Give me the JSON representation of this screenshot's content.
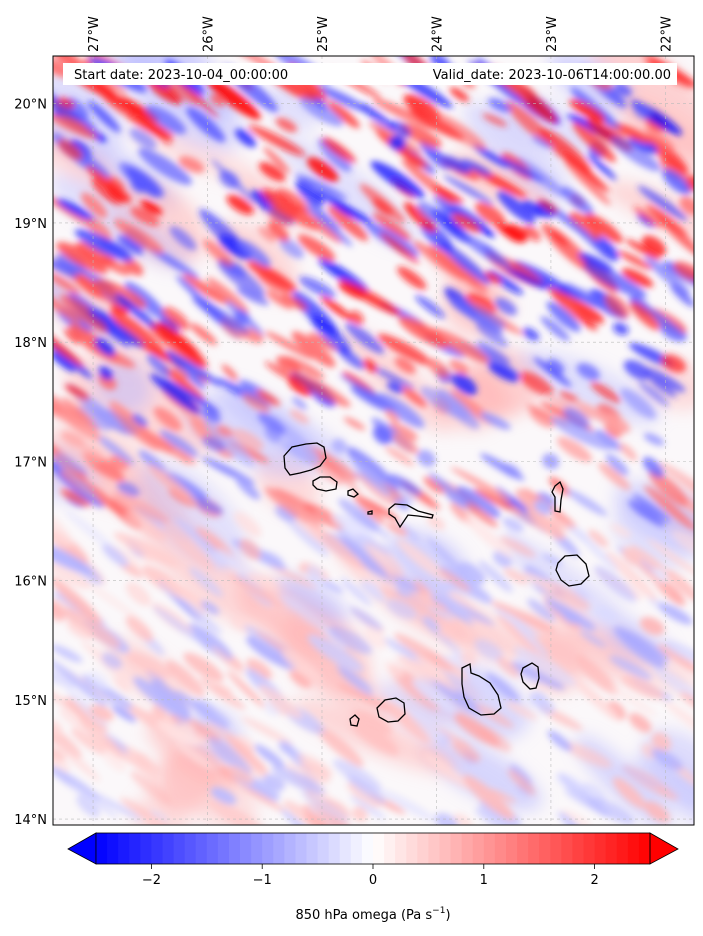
{
  "map": {
    "start_date_text": "Start date: 2023-10-04_00:00:00",
    "valid_date_text": "Valid_date: 2023-10-06T14:00:00.00",
    "lon_ticks": [
      {
        "value": -27,
        "label": "27°W"
      },
      {
        "value": -26,
        "label": "26°W"
      },
      {
        "value": -25,
        "label": "25°W"
      },
      {
        "value": -24,
        "label": "24°W"
      },
      {
        "value": -23,
        "label": "23°W"
      },
      {
        "value": -22,
        "label": "22°W"
      }
    ],
    "lat_ticks": [
      {
        "value": 14,
        "label": "14°N"
      },
      {
        "value": 15,
        "label": "15°N"
      },
      {
        "value": 16,
        "label": "16°N"
      },
      {
        "value": 17,
        "label": "17°N"
      },
      {
        "value": 18,
        "label": "18°N"
      },
      {
        "value": 19,
        "label": "19°N"
      },
      {
        "value": 20,
        "label": "20°N"
      }
    ],
    "lon_range": [
      -27.35,
      -21.75
    ],
    "lat_range": [
      13.95,
      20.4
    ],
    "gridlines": true,
    "field": "850 hPa omega",
    "coastline_color": "#000000"
  },
  "colorbar": {
    "label_main": "850 hPa omega (Pa s",
    "label_sup": "−1",
    "label_close": ")",
    "ticks": [
      {
        "value": -2,
        "label": "−2"
      },
      {
        "value": -1,
        "label": "−1"
      },
      {
        "value": 0,
        "label": "0"
      },
      {
        "value": 1,
        "label": "1"
      },
      {
        "value": 2,
        "label": "2"
      }
    ],
    "vmin": -2.5,
    "vmax": 2.5,
    "extend": "both",
    "cmap": "bwr",
    "colors": {
      "low": "#0000ff",
      "mid": "#ffffff",
      "high": "#ff0000"
    }
  }
}
